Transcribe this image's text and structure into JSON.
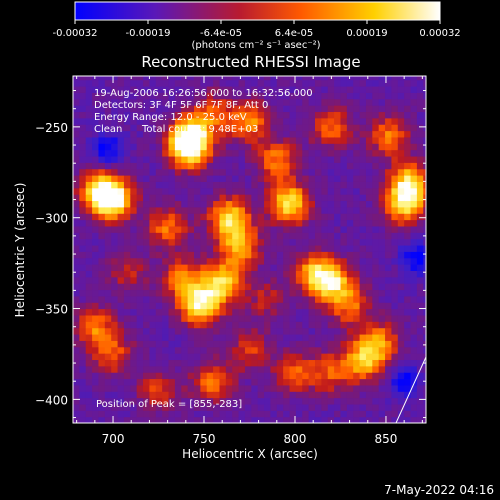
{
  "chart_data": {
    "type": "heatmap",
    "title": "Reconstructed RHESSI Image",
    "xlabel": "Heliocentric X (arcsec)",
    "ylabel": "Heliocentric Y (arcsec)",
    "xlim": [
      678,
      872
    ],
    "ylim": [
      -413,
      -222
    ],
    "x_ticks": [
      700,
      750,
      800,
      850
    ],
    "x_tick_labels": [
      "700",
      "750",
      "800",
      "850"
    ],
    "y_ticks": [
      -250,
      -300,
      -350,
      -400
    ],
    "y_tick_labels": [
      "−250",
      "−300",
      "−350",
      "−400"
    ],
    "colorbar": {
      "range": [
        -0.00032,
        0.00032
      ],
      "tick_labels": [
        "-0.00032",
        "-0.00019",
        "-6.4e-05",
        "6.4e-05",
        "0.00019",
        "0.00032"
      ],
      "unit_label": "(photons cm⁻² s⁻¹ asec⁻²)",
      "colors": [
        "#0000ff",
        "#6a1aa8",
        "#c81c1c",
        "#ff7a00",
        "#ffd000",
        "#ffffff"
      ]
    },
    "annotations": {
      "time": "19-Aug-2006 16:26:56.000 to 16:32:56.000",
      "detectors": "Detectors: 3F 4F 5F 6F 7F 8F, Att 0",
      "energy": "Energy Range: 12.0 - 25.0 keV",
      "clean": "Clean",
      "counts": "Total counts: 9.48E+03",
      "peak": "Position of Peak = [855,-283]"
    },
    "blobs": [
      {
        "x": 700,
        "y": -290,
        "v": 1.0
      },
      {
        "x": 693,
        "y": -285,
        "v": 0.8
      },
      {
        "x": 730,
        "y": -305,
        "v": 0.6
      },
      {
        "x": 742,
        "y": -255,
        "v": 0.9
      },
      {
        "x": 742,
        "y": -262,
        "v": 0.85
      },
      {
        "x": 755,
        "y": -242,
        "v": 0.5
      },
      {
        "x": 775,
        "y": -247,
        "v": 0.65
      },
      {
        "x": 790,
        "y": -268,
        "v": 0.6
      },
      {
        "x": 764,
        "y": -300,
        "v": 0.9
      },
      {
        "x": 770,
        "y": -316,
        "v": 0.7
      },
      {
        "x": 797,
        "y": -292,
        "v": 0.95
      },
      {
        "x": 820,
        "y": -250,
        "v": 0.55
      },
      {
        "x": 852,
        "y": -255,
        "v": 0.6
      },
      {
        "x": 860,
        "y": -292,
        "v": 0.85
      },
      {
        "x": 863,
        "y": -280,
        "v": 0.8
      },
      {
        "x": 748,
        "y": -348,
        "v": 1.0
      },
      {
        "x": 760,
        "y": -335,
        "v": 0.85
      },
      {
        "x": 738,
        "y": -333,
        "v": 0.6
      },
      {
        "x": 820,
        "y": -335,
        "v": 0.85
      },
      {
        "x": 810,
        "y": -330,
        "v": 0.65
      },
      {
        "x": 830,
        "y": -348,
        "v": 0.55
      },
      {
        "x": 838,
        "y": -378,
        "v": 0.75
      },
      {
        "x": 846,
        "y": -368,
        "v": 0.6
      },
      {
        "x": 700,
        "y": -375,
        "v": 0.5
      },
      {
        "x": 690,
        "y": -360,
        "v": 0.6
      },
      {
        "x": 755,
        "y": -390,
        "v": 0.6
      },
      {
        "x": 775,
        "y": -372,
        "v": 0.45
      },
      {
        "x": 800,
        "y": -385,
        "v": 0.55
      },
      {
        "x": 820,
        "y": -385,
        "v": 0.5
      },
      {
        "x": 725,
        "y": -395,
        "v": 0.45
      },
      {
        "x": 785,
        "y": -345,
        "v": 0.35
      },
      {
        "x": 708,
        "y": -330,
        "v": 0.35
      }
    ],
    "cold_spots": [
      {
        "x": 860,
        "y": -390
      },
      {
        "x": 697,
        "y": -262
      },
      {
        "x": 867,
        "y": -322
      }
    ]
  },
  "timestamp": "7-May-2022 04:16"
}
